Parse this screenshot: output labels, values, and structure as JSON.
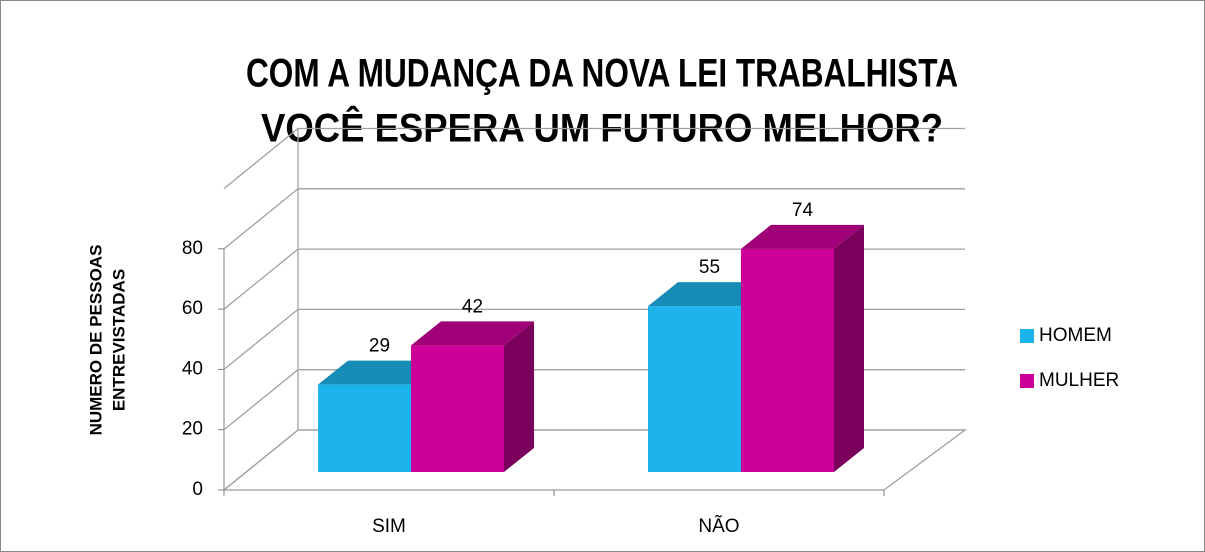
{
  "chart_data": {
    "type": "bar3d",
    "title": [
      "COM A MUDANÇA DA NOVA LEI TRABALHISTA",
      "VOCÊ ESPERA UM FUTURO MELHOR?"
    ],
    "y_label": [
      "NUMERO DE PESSOAS",
      "ENTREVISTADAS"
    ],
    "categories": [
      "SIM",
      "NÃO"
    ],
    "series": [
      {
        "name": "HOMEM",
        "color": "#1cb4ea",
        "values": [
          29,
          55
        ]
      },
      {
        "name": "MULHER",
        "color": "#cc0099",
        "values": [
          42,
          74
        ]
      }
    ],
    "ylim": [
      0,
      100
    ],
    "yticks": [
      0,
      20,
      40,
      60,
      80
    ],
    "grid": true,
    "legend": "right"
  }
}
